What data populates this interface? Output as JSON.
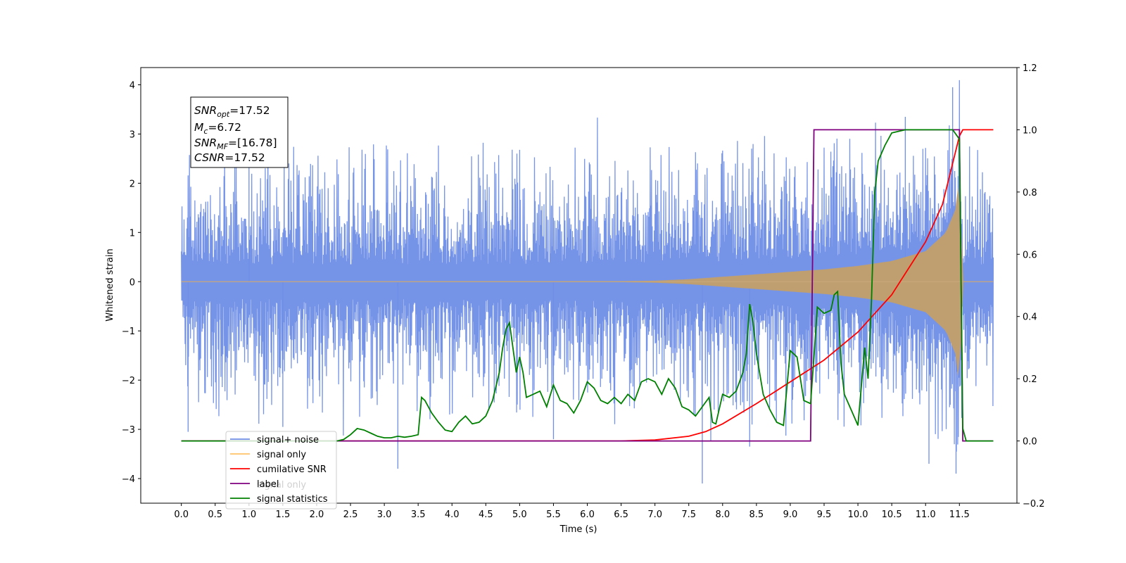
{
  "chart_data": {
    "type": "line",
    "xlabel": "Time (s)",
    "ylabel": "Whitened strain",
    "xlim": [
      -0.6,
      12.35
    ],
    "ylim": [
      -4.5,
      4.35
    ],
    "y2lim": [
      -0.2,
      1.2
    ],
    "x_ticks": [
      0.0,
      0.5,
      1.0,
      1.5,
      2.0,
      2.5,
      3.0,
      3.5,
      4.0,
      4.5,
      5.0,
      5.5,
      6.0,
      6.5,
      7.0,
      7.5,
      8.0,
      8.5,
      9.0,
      9.5,
      10.0,
      10.5,
      11.0,
      11.5
    ],
    "x_tick_labels": [
      "0.0",
      "0.5",
      "1.0",
      "1.5",
      "2.0",
      "2.5",
      "3.0",
      "3.5",
      "4.0",
      "4.5",
      "5.0",
      "5.5",
      "6.0",
      "6.5",
      "7.0",
      "7.5",
      "8.0",
      "8.5",
      "9.0",
      "9.5",
      "10.0",
      "10.5",
      "11.0",
      "11.5"
    ],
    "y_ticks": [
      -4,
      -3,
      -2,
      -1,
      0,
      1,
      2,
      3,
      4
    ],
    "y_tick_labels": [
      "−4",
      "−3",
      "−2",
      "−1",
      "0",
      "1",
      "2",
      "3",
      "4"
    ],
    "y2_ticks": [
      -0.2,
      0.0,
      0.2,
      0.4,
      0.6,
      0.8,
      1.0,
      1.2
    ],
    "y2_tick_labels": [
      "−0.2",
      "0.0",
      "0.2",
      "0.4",
      "0.6",
      "0.8",
      "1.0",
      "1.2"
    ],
    "annotation": {
      "lines": [
        {
          "main": "SNR",
          "sub": "opt",
          "rest": "=17.52"
        },
        {
          "main": "M",
          "sub": "c",
          "rest": "=6.72"
        },
        {
          "main": "SNR",
          "sub": "MF",
          "rest": "=[16.78]"
        },
        {
          "main": "CSNR",
          "sub": "",
          "rest": "=17.52"
        }
      ]
    },
    "legend": {
      "placement": "lower-left",
      "entries": [
        {
          "label": "signal+ noise",
          "color": "#6f8ee6"
        },
        {
          "label": "signal only",
          "color": "#ffc266"
        },
        {
          "label": "cumilative SNR",
          "color": "#ff0000"
        },
        {
          "label": "label",
          "color": "#800080"
        },
        {
          "label": "signal statistics",
          "color": "#008000"
        }
      ],
      "ghost_text": "signal only"
    },
    "series": [
      {
        "name": "signal+ noise",
        "axis": "left",
        "color": "#6f8ee6",
        "x_start": 0.0,
        "x_end": 12.0,
        "envelope_amplitude": 2.2,
        "peak_values": [
          {
            "x": 0.1,
            "y": -3.05
          },
          {
            "x": 1.0,
            "y": 3.05
          },
          {
            "x": 1.5,
            "y": -2.95
          },
          {
            "x": 3.2,
            "y": -3.8
          },
          {
            "x": 5.5,
            "y": -3.2
          },
          {
            "x": 7.7,
            "y": -4.1
          },
          {
            "x": 8.4,
            "y": -3.35
          },
          {
            "x": 10.7,
            "y": 3.35
          },
          {
            "x": 11.05,
            "y": -3.7
          },
          {
            "x": 11.4,
            "y": 3.95
          },
          {
            "x": 11.45,
            "y": -3.9
          }
        ]
      },
      {
        "name": "signal only",
        "axis": "left",
        "color": "#ffc266",
        "x_start": 0.0,
        "x_end": 12.0,
        "envelope": [
          [
            0.0,
            0.0
          ],
          [
            6.5,
            0.01
          ],
          [
            7.0,
            0.02
          ],
          [
            7.5,
            0.05
          ],
          [
            8.0,
            0.1
          ],
          [
            8.5,
            0.15
          ],
          [
            9.0,
            0.2
          ],
          [
            9.5,
            0.25
          ],
          [
            10.0,
            0.32
          ],
          [
            10.5,
            0.42
          ],
          [
            11.0,
            0.62
          ],
          [
            11.3,
            1.0
          ],
          [
            11.45,
            1.5
          ],
          [
            11.5,
            2.2
          ],
          [
            11.55,
            0.0
          ],
          [
            12.0,
            0.0
          ]
        ]
      },
      {
        "name": "cumilative SNR",
        "axis": "right",
        "color": "#ff0000",
        "points": [
          [
            0.0,
            0.0
          ],
          [
            6.5,
            0.0
          ],
          [
            7.0,
            0.003
          ],
          [
            7.5,
            0.015
          ],
          [
            7.75,
            0.03
          ],
          [
            8.0,
            0.055
          ],
          [
            8.5,
            0.12
          ],
          [
            9.0,
            0.19
          ],
          [
            9.5,
            0.26
          ],
          [
            10.0,
            0.35
          ],
          [
            10.5,
            0.47
          ],
          [
            11.0,
            0.64
          ],
          [
            11.25,
            0.76
          ],
          [
            11.5,
            0.98
          ],
          [
            11.55,
            1.0
          ],
          [
            12.0,
            1.0
          ]
        ]
      },
      {
        "name": "label",
        "axis": "right",
        "color": "#800080",
        "points": [
          [
            0.0,
            0.0
          ],
          [
            9.3,
            0.0
          ],
          [
            9.35,
            1.0
          ],
          [
            11.5,
            1.0
          ],
          [
            11.55,
            0.0
          ],
          [
            12.0,
            0.0
          ]
        ]
      },
      {
        "name": "signal statistics",
        "axis": "right",
        "color": "#008000",
        "points": [
          [
            0.0,
            0.0
          ],
          [
            2.3,
            0.0
          ],
          [
            2.4,
            0.005
          ],
          [
            2.5,
            0.02
          ],
          [
            2.6,
            0.04
          ],
          [
            2.7,
            0.035
          ],
          [
            2.8,
            0.025
          ],
          [
            2.9,
            0.015
          ],
          [
            3.0,
            0.01
          ],
          [
            3.1,
            0.01
          ],
          [
            3.2,
            0.015
          ],
          [
            3.3,
            0.012
          ],
          [
            3.4,
            0.015
          ],
          [
            3.5,
            0.02
          ],
          [
            3.55,
            0.14
          ],
          [
            3.6,
            0.13
          ],
          [
            3.7,
            0.09
          ],
          [
            3.8,
            0.06
          ],
          [
            3.9,
            0.035
          ],
          [
            4.0,
            0.03
          ],
          [
            4.1,
            0.06
          ],
          [
            4.2,
            0.08
          ],
          [
            4.3,
            0.055
          ],
          [
            4.4,
            0.06
          ],
          [
            4.5,
            0.08
          ],
          [
            4.6,
            0.13
          ],
          [
            4.7,
            0.22
          ],
          [
            4.75,
            0.3
          ],
          [
            4.8,
            0.36
          ],
          [
            4.85,
            0.38
          ],
          [
            4.9,
            0.3
          ],
          [
            4.95,
            0.22
          ],
          [
            5.0,
            0.27
          ],
          [
            5.05,
            0.22
          ],
          [
            5.1,
            0.14
          ],
          [
            5.2,
            0.15
          ],
          [
            5.3,
            0.16
          ],
          [
            5.4,
            0.11
          ],
          [
            5.5,
            0.18
          ],
          [
            5.6,
            0.13
          ],
          [
            5.7,
            0.12
          ],
          [
            5.8,
            0.09
          ],
          [
            5.9,
            0.13
          ],
          [
            6.0,
            0.19
          ],
          [
            6.1,
            0.17
          ],
          [
            6.2,
            0.13
          ],
          [
            6.3,
            0.12
          ],
          [
            6.4,
            0.14
          ],
          [
            6.5,
            0.12
          ],
          [
            6.6,
            0.15
          ],
          [
            6.7,
            0.13
          ],
          [
            6.8,
            0.19
          ],
          [
            6.9,
            0.2
          ],
          [
            7.0,
            0.19
          ],
          [
            7.1,
            0.15
          ],
          [
            7.2,
            0.2
          ],
          [
            7.3,
            0.17
          ],
          [
            7.4,
            0.11
          ],
          [
            7.5,
            0.1
          ],
          [
            7.6,
            0.08
          ],
          [
            7.7,
            0.11
          ],
          [
            7.8,
            0.14
          ],
          [
            7.85,
            0.06
          ],
          [
            7.9,
            0.055
          ],
          [
            8.0,
            0.15
          ],
          [
            8.1,
            0.14
          ],
          [
            8.2,
            0.16
          ],
          [
            8.3,
            0.22
          ],
          [
            8.35,
            0.28
          ],
          [
            8.4,
            0.44
          ],
          [
            8.45,
            0.38
          ],
          [
            8.5,
            0.28
          ],
          [
            8.6,
            0.15
          ],
          [
            8.7,
            0.1
          ],
          [
            8.8,
            0.06
          ],
          [
            8.9,
            0.05
          ],
          [
            9.0,
            0.29
          ],
          [
            9.1,
            0.27
          ],
          [
            9.2,
            0.13
          ],
          [
            9.3,
            0.12
          ],
          [
            9.35,
            0.27
          ],
          [
            9.4,
            0.43
          ],
          [
            9.5,
            0.41
          ],
          [
            9.6,
            0.42
          ],
          [
            9.65,
            0.47
          ],
          [
            9.7,
            0.48
          ],
          [
            9.75,
            0.25
          ],
          [
            9.8,
            0.15
          ],
          [
            9.9,
            0.1
          ],
          [
            10.0,
            0.05
          ],
          [
            10.1,
            0.3
          ],
          [
            10.15,
            0.2
          ],
          [
            10.2,
            0.45
          ],
          [
            10.25,
            0.8
          ],
          [
            10.3,
            0.9
          ],
          [
            10.4,
            0.95
          ],
          [
            10.5,
            0.99
          ],
          [
            10.6,
            0.995
          ],
          [
            10.7,
            1.0
          ],
          [
            11.4,
            1.0
          ],
          [
            11.5,
            0.97
          ],
          [
            11.55,
            0.04
          ],
          [
            11.6,
            0.0
          ],
          [
            12.0,
            0.0
          ]
        ]
      }
    ]
  }
}
